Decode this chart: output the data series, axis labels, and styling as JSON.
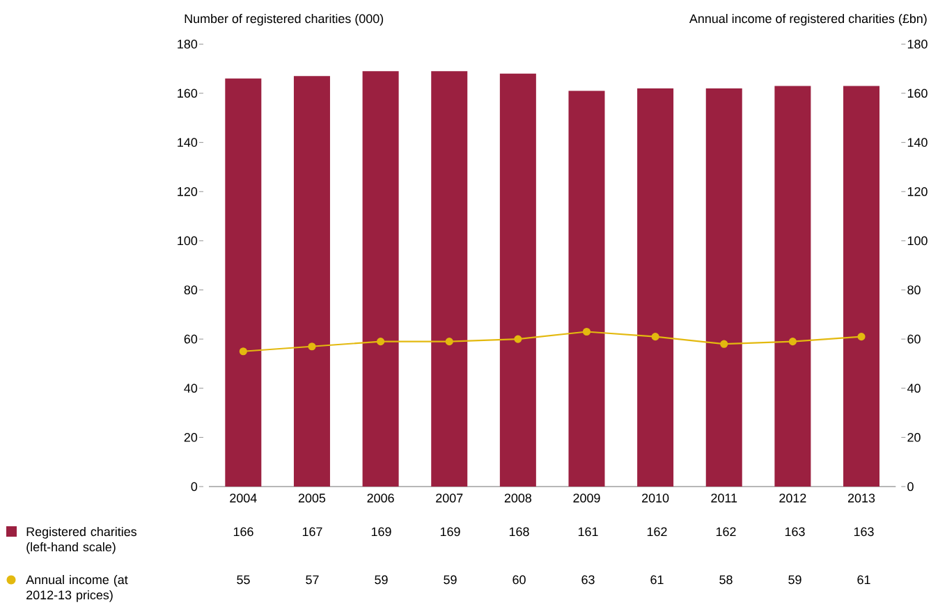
{
  "chart_data": {
    "type": "bar",
    "ylabel": "Number of registered charities (000)",
    "y2label": "Annual income of registered charities (£bn)",
    "categories": [
      "2004",
      "2005",
      "2006",
      "2007",
      "2008",
      "2009",
      "2010",
      "2011",
      "2012",
      "2013"
    ],
    "series": [
      {
        "name": "Registered charities (left-hand scale)",
        "color": "#9b2040",
        "values": [
          166,
          167,
          169,
          169,
          168,
          161,
          162,
          162,
          163,
          163
        ]
      },
      {
        "name": "Annual income (at 2012-13 prices)",
        "type": "line",
        "axis": "y2",
        "color": "#e3b90f",
        "marker": "circle",
        "values": [
          55,
          57,
          59,
          59,
          60,
          63,
          61,
          58,
          59,
          61
        ]
      }
    ],
    "ylim": [
      0,
      180
    ],
    "yticks": [
      0,
      20,
      40,
      60,
      80,
      100,
      120,
      140,
      160,
      180
    ],
    "y2lim": [
      0,
      180
    ],
    "y2ticks": [
      0,
      20,
      40,
      60,
      80,
      100,
      120,
      140,
      160,
      180
    ],
    "data_labels": true,
    "legend": "bottom left"
  }
}
